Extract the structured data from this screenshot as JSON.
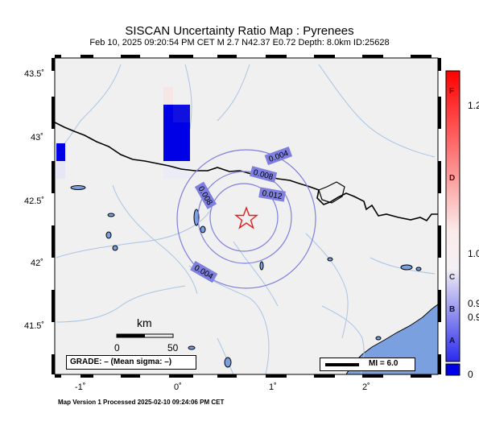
{
  "title": "SISCAN Uncertainty Ratio Map : Pyrenees",
  "subtitle": "Feb 10, 2025 09:20:54 PM CET   M 2.7   N42.37 E0.72   Depth: 8.0km   ID:25628",
  "footer": "Map Version 1 Processed 2025-02-10 09:24:06 PM CET",
  "lat_labels": [
    "43.5˚",
    "43˚",
    "42.5˚",
    "42˚",
    "41.5˚"
  ],
  "lon_labels": [
    "-1˚",
    "0˚",
    "1˚",
    "2˚"
  ],
  "contour_labels": [
    "0.004",
    "0.008",
    "0.012",
    "0.008",
    "0.004"
  ],
  "scale_bar": {
    "unit": "km",
    "ticks": [
      "0",
      "50"
    ]
  },
  "grade_legend": "GRADE: – (Mean sigma: –)",
  "mi_legend": "MI = 6.0",
  "colorbar": {
    "letters": [
      "F",
      "D",
      "C",
      "B",
      "A"
    ],
    "values": [
      "1.2",
      "1.0",
      "0.9",
      "0.9",
      "0"
    ]
  },
  "colors": {
    "land": "#f0f0f0",
    "sea": "#7aa0e0",
    "rivers": "#a8c4e4",
    "contours": "#7f7fe0",
    "epicenter": "#e02020",
    "high_uncertainty": "#0000e6"
  }
}
